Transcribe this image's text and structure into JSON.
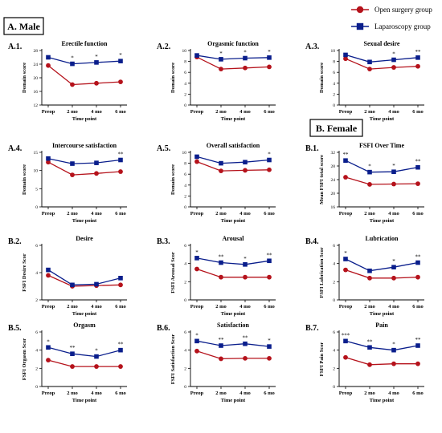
{
  "legend": {
    "open_label": "Open surgery group",
    "lap_label": "Laparoscopy group",
    "open_color": "#b5121b",
    "lap_color": "#0a1e8c"
  },
  "sections": {
    "male": "A. Male",
    "female": "B. Female"
  },
  "chart_data": [
    {
      "id": "A.1.",
      "type": "line",
      "title": "Erectile function",
      "ylabel": "Domain score",
      "xlabel": "Time point",
      "categories": [
        "Preop",
        "2 mo",
        "4 mo",
        "6 mo"
      ],
      "ylim": [
        12,
        28
      ],
      "yticks": [
        12,
        16,
        20,
        24,
        28
      ],
      "series": [
        {
          "name": "Open surgery group",
          "values": [
            23.6,
            18.0,
            18.4,
            18.8
          ]
        },
        {
          "name": "Laparoscopy group",
          "values": [
            26.0,
            24.1,
            24.5,
            24.9
          ]
        }
      ],
      "annotations": [
        "",
        "*",
        "*",
        "*"
      ]
    },
    {
      "id": "A.2.",
      "type": "line",
      "title": "Orgasmic function",
      "ylabel": "Domain score",
      "xlabel": "Time point",
      "categories": [
        "Preop",
        "2 mo",
        "4 mo",
        "6 mo"
      ],
      "ylim": [
        0,
        10
      ],
      "yticks": [
        0,
        2,
        4,
        6,
        8,
        10
      ],
      "series": [
        {
          "name": "Open surgery group",
          "values": [
            8.8,
            6.6,
            6.8,
            7.0
          ]
        },
        {
          "name": "Laparoscopy group",
          "values": [
            9.1,
            8.4,
            8.6,
            8.7
          ]
        }
      ],
      "annotations": [
        "",
        "*",
        "*",
        "*"
      ]
    },
    {
      "id": "A.3.",
      "type": "line",
      "title": "Sexual desire",
      "ylabel": "Domain score",
      "xlabel": "Time point",
      "categories": [
        "Preop",
        "2 mo",
        "4 mo",
        "6 mo"
      ],
      "ylim": [
        0,
        10
      ],
      "yticks": [
        0,
        2,
        4,
        6,
        8,
        10
      ],
      "series": [
        {
          "name": "Open surgery group",
          "values": [
            8.5,
            6.6,
            6.9,
            7.1
          ]
        },
        {
          "name": "Laparoscopy group",
          "values": [
            9.2,
            7.9,
            8.3,
            8.7
          ]
        }
      ],
      "annotations": [
        "",
        "",
        "*",
        "**"
      ]
    },
    {
      "id": "A.4.",
      "type": "line",
      "title": "Intercourse satisfaction",
      "ylabel": "Domain score",
      "xlabel": "Time point",
      "categories": [
        "Preop",
        "2 mo",
        "4 mo",
        "6 mo"
      ],
      "ylim": [
        0,
        15
      ],
      "yticks": [
        0,
        5,
        10,
        15
      ],
      "series": [
        {
          "name": "Open surgery group",
          "values": [
            12.3,
            8.8,
            9.2,
            9.7
          ]
        },
        {
          "name": "Laparoscopy group",
          "values": [
            13.3,
            11.9,
            12.1,
            12.9
          ]
        }
      ],
      "annotations": [
        "",
        "",
        "",
        "**"
      ]
    },
    {
      "id": "A.5.",
      "type": "line",
      "title": "Overall satisfaction",
      "ylabel": "Domain score",
      "xlabel": "Time point",
      "categories": [
        "Preop",
        "2 mo",
        "4 mo",
        "6 mo"
      ],
      "ylim": [
        0,
        10
      ],
      "yticks": [
        0,
        2,
        4,
        6,
        8,
        10
      ],
      "series": [
        {
          "name": "Open surgery group",
          "values": [
            8.3,
            6.6,
            6.7,
            6.8
          ]
        },
        {
          "name": "Laparoscopy group",
          "values": [
            9.2,
            8.0,
            8.2,
            8.6
          ]
        }
      ],
      "annotations": [
        "",
        "",
        "",
        "*"
      ]
    },
    {
      "id": "B.1.",
      "type": "line",
      "title": "FSFI Over Time",
      "ylabel": "Mean FSFI total score",
      "xlabel": "Time point",
      "categories": [
        "Preop",
        "2 mo",
        "4 mo",
        "6 mo"
      ],
      "ylim": [
        16,
        32
      ],
      "yticks": [
        16,
        20,
        24,
        28,
        32
      ],
      "series": [
        {
          "name": "Open surgery group",
          "values": [
            24.7,
            22.6,
            22.7,
            22.8
          ]
        },
        {
          "name": "Laparoscopy group",
          "values": [
            29.6,
            26.2,
            26.3,
            27.6
          ]
        }
      ],
      "annotations": [
        "**",
        "*",
        "*",
        "**"
      ]
    },
    {
      "id": "B.2.",
      "type": "line",
      "title": "Desire",
      "ylabel": "FSFI Desire Scor",
      "xlabel": "Time point",
      "categories": [
        "Preop",
        "2 mo",
        "4 mo",
        "6 mo"
      ],
      "ylim": [
        2,
        6
      ],
      "yticks": [
        2,
        4,
        6
      ],
      "series": [
        {
          "name": "Open surgery group",
          "values": [
            3.8,
            3.0,
            3.05,
            3.1
          ]
        },
        {
          "name": "Laparoscopy group",
          "values": [
            4.2,
            3.1,
            3.15,
            3.6
          ]
        }
      ],
      "annotations": [
        "",
        "",
        "",
        ""
      ]
    },
    {
      "id": "B.3.",
      "type": "line",
      "title": "Arousal",
      "ylabel": "FSFI Arousal Scor",
      "xlabel": "Time point",
      "categories": [
        "Preop",
        "2 mo",
        "4 mo",
        "6 mo"
      ],
      "ylim": [
        0,
        6
      ],
      "yticks": [
        0,
        2,
        4,
        6
      ],
      "series": [
        {
          "name": "Open surgery group",
          "values": [
            3.4,
            2.5,
            2.5,
            2.5
          ]
        },
        {
          "name": "Laparoscopy group",
          "values": [
            4.6,
            4.1,
            3.9,
            4.3
          ]
        }
      ],
      "annotations": [
        "*",
        "**",
        "*",
        "**"
      ]
    },
    {
      "id": "B.4.",
      "type": "line",
      "title": "Lubrication",
      "ylabel": "FSFI Lubrication Scor",
      "xlabel": "Time point",
      "categories": [
        "Preop",
        "2 mo",
        "4 mo",
        "6 mo"
      ],
      "ylim": [
        0,
        6
      ],
      "yticks": [
        0,
        2,
        4,
        6
      ],
      "series": [
        {
          "name": "Open surgery group",
          "values": [
            3.3,
            2.4,
            2.4,
            2.5
          ]
        },
        {
          "name": "Laparoscopy group",
          "values": [
            4.5,
            3.2,
            3.6,
            4.1
          ]
        }
      ],
      "annotations": [
        "*",
        "",
        "*",
        "**"
      ]
    },
    {
      "id": "B.5.",
      "type": "line",
      "title": "Orgasm",
      "ylabel": "FSFI Orgasm Scor",
      "xlabel": "Time point",
      "categories": [
        "Preop",
        "2 mo",
        "4 mo",
        "6 mo"
      ],
      "ylim": [
        0,
        6
      ],
      "yticks": [
        0,
        2,
        4,
        6
      ],
      "series": [
        {
          "name": "Open surgery group",
          "values": [
            2.9,
            2.2,
            2.2,
            2.2
          ]
        },
        {
          "name": "Laparoscopy group",
          "values": [
            4.3,
            3.6,
            3.3,
            4.0
          ]
        }
      ],
      "annotations": [
        "*",
        "**",
        "*",
        "**"
      ]
    },
    {
      "id": "B.6.",
      "type": "line",
      "title": "Satisfaction",
      "ylabel": "FSFI Satisfaction Scor",
      "xlabel": "Time point",
      "categories": [
        "Preop",
        "2 mo",
        "4 mo",
        "6 mo"
      ],
      "ylim": [
        0,
        6
      ],
      "yticks": [
        0,
        2,
        4,
        6
      ],
      "series": [
        {
          "name": "Open surgery group",
          "values": [
            3.9,
            3.05,
            3.1,
            3.1
          ]
        },
        {
          "name": "Laparoscopy group",
          "values": [
            5.0,
            4.5,
            4.7,
            4.4
          ]
        }
      ],
      "annotations": [
        "*",
        "**",
        "**",
        "*"
      ]
    },
    {
      "id": "B.7.",
      "type": "line",
      "title": "Pain",
      "ylabel": "FSFI Pain Scor",
      "xlabel": "Time point",
      "categories": [
        "Preop",
        "2 mo",
        "4 mo",
        "6 mo"
      ],
      "ylim": [
        0,
        6
      ],
      "yticks": [
        0,
        2,
        4,
        6
      ],
      "series": [
        {
          "name": "Open surgery group",
          "values": [
            3.2,
            2.4,
            2.5,
            2.5
          ]
        },
        {
          "name": "Laparoscopy group",
          "values": [
            5.0,
            4.3,
            4.0,
            4.5
          ]
        }
      ],
      "annotations": [
        "***",
        "**",
        "*",
        "**"
      ]
    }
  ]
}
